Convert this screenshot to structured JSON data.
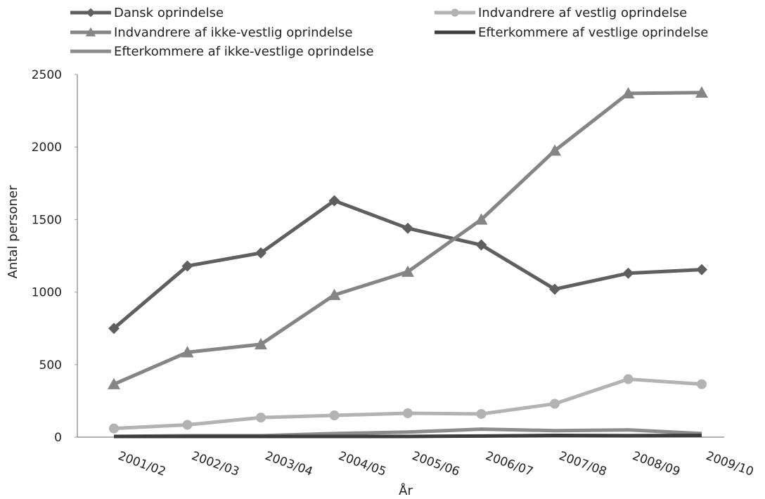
{
  "chart_data": {
    "type": "line",
    "xlabel": "År",
    "ylabel": "Antal personer",
    "ylim": [
      0,
      2500
    ],
    "yticks": [
      0,
      500,
      1000,
      1500,
      2000,
      2500
    ],
    "categories": [
      "2001/02",
      "2002/03",
      "2003/04",
      "2004/05",
      "2005/06",
      "2006/07",
      "2007/08",
      "2008/09",
      "2009/10"
    ],
    "grid": false,
    "legend_position": "top",
    "series": [
      {
        "name": "Dansk oprindelse",
        "color": "#5f5f5f",
        "marker": "diamond",
        "values": [
          750,
          1180,
          1270,
          1630,
          1440,
          1325,
          1020,
          1130,
          1155
        ]
      },
      {
        "name": "Indvandrere af vestlig oprindelse",
        "color": "#b3b3b3",
        "marker": "circle",
        "values": [
          60,
          85,
          135,
          150,
          165,
          160,
          230,
          400,
          365
        ]
      },
      {
        "name": "Indvandrere af ikke-vestlig oprindelse",
        "color": "#858585",
        "marker": "triangle",
        "values": [
          365,
          585,
          640,
          980,
          1140,
          1500,
          1975,
          2370,
          2375
        ]
      },
      {
        "name": "Efterkommere af vestlige oprindelse",
        "color": "#3d3d3d",
        "marker": "none",
        "values": [
          5,
          5,
          5,
          5,
          5,
          8,
          12,
          10,
          12
        ]
      },
      {
        "name": "Efterkommere af ikke-vestlige oprindelse",
        "color": "#8c8c8c",
        "marker": "none",
        "values": [
          5,
          10,
          10,
          25,
          35,
          55,
          45,
          50,
          25
        ]
      }
    ]
  }
}
